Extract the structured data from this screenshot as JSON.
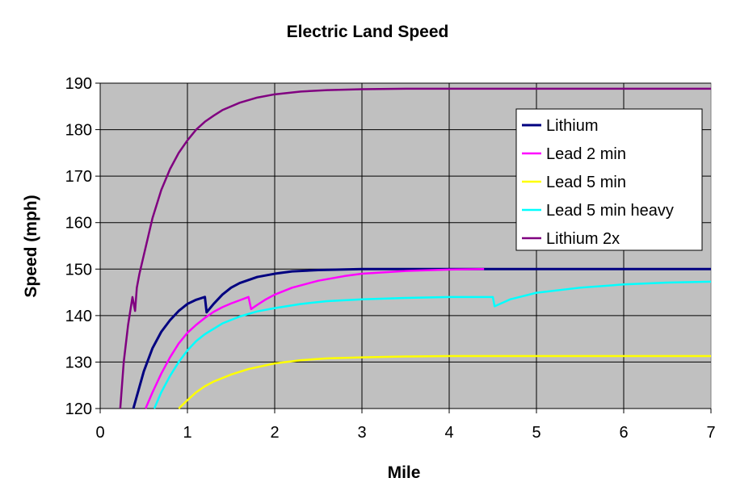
{
  "chart_data": {
    "type": "line",
    "title": "Electric Land Speed",
    "xlabel": "Mile",
    "ylabel": "Speed (mph)",
    "xlim": [
      0,
      7
    ],
    "ylim": [
      120,
      190
    ],
    "x_ticks": [
      0,
      1,
      2,
      3,
      4,
      5,
      6,
      7
    ],
    "y_ticks": [
      120,
      130,
      140,
      150,
      160,
      170,
      180,
      190
    ],
    "grid": true,
    "plot_background": "#c0c0c0",
    "legend_position": "top-right",
    "series": [
      {
        "name": "Lithium",
        "color": "#000080",
        "x": [
          0.38,
          0.5,
          0.6,
          0.7,
          0.8,
          0.9,
          1.0,
          1.1,
          1.2,
          1.22,
          1.3,
          1.4,
          1.5,
          1.6,
          1.8,
          2.0,
          2.2,
          2.5,
          3.0,
          3.5,
          4.0,
          5.0,
          6.0,
          7.0
        ],
        "y": [
          120,
          128,
          133,
          136.5,
          139,
          141,
          142.5,
          143.4,
          144,
          140.7,
          142.5,
          144.5,
          146,
          147,
          148.3,
          149,
          149.5,
          149.8,
          150,
          150,
          150,
          150,
          150,
          150
        ]
      },
      {
        "name": "Lead 2 min",
        "color": "#ff00ff",
        "x": [
          0.52,
          0.6,
          0.7,
          0.8,
          0.9,
          1.0,
          1.1,
          1.2,
          1.3,
          1.4,
          1.5,
          1.6,
          1.7,
          1.73,
          1.8,
          1.9,
          2.0,
          2.2,
          2.5,
          2.8,
          3.0,
          3.5,
          4.0,
          4.4
        ],
        "y": [
          120,
          123.5,
          127.5,
          131,
          134,
          136.3,
          138,
          139.5,
          140.8,
          141.8,
          142.6,
          143.3,
          144,
          141.4,
          142.3,
          143.5,
          144.5,
          146,
          147.5,
          148.5,
          149,
          149.6,
          149.9,
          150
        ]
      },
      {
        "name": "Lead 5 min",
        "color": "#ffff00",
        "x": [
          0.9,
          1.0,
          1.1,
          1.2,
          1.3,
          1.5,
          1.7,
          2.0,
          2.3,
          2.6,
          3.0,
          3.5,
          4.0,
          5.0,
          6.0,
          7.0
        ],
        "y": [
          120,
          121.8,
          123.5,
          124.8,
          125.8,
          127.3,
          128.5,
          129.7,
          130.4,
          130.8,
          131,
          131.2,
          131.3,
          131.3,
          131.3,
          131.3
        ]
      },
      {
        "name": "Lead 5 min heavy",
        "color": "#00ffff",
        "x": [
          0.62,
          0.7,
          0.8,
          0.9,
          1.0,
          1.1,
          1.2,
          1.4,
          1.6,
          1.8,
          2.0,
          2.3,
          2.6,
          3.0,
          3.5,
          4.0,
          4.5,
          4.52,
          4.7,
          5.0,
          5.5,
          6.0,
          6.5,
          7.0
        ],
        "y": [
          120,
          123.5,
          127,
          130,
          132.5,
          134.5,
          136,
          138.3,
          139.8,
          140.9,
          141.6,
          142.5,
          143.1,
          143.5,
          143.8,
          144,
          144,
          142,
          143.5,
          144.9,
          146,
          146.7,
          147.1,
          147.3
        ]
      },
      {
        "name": "Lithium 2x",
        "color": "#800080",
        "x": [
          0.23,
          0.27,
          0.32,
          0.37,
          0.4,
          0.42,
          0.45,
          0.5,
          0.55,
          0.6,
          0.7,
          0.8,
          0.9,
          1.0,
          1.1,
          1.2,
          1.3,
          1.4,
          1.6,
          1.8,
          2.0,
          2.3,
          2.6,
          3.0,
          3.5,
          4.0,
          5.0,
          6.0,
          7.0
        ],
        "y": [
          120,
          130,
          138,
          144,
          141,
          146,
          149,
          153,
          157,
          161,
          167,
          171.5,
          175,
          177.7,
          180,
          181.7,
          183,
          184.2,
          185.8,
          186.9,
          187.6,
          188.2,
          188.5,
          188.7,
          188.8,
          188.8,
          188.8,
          188.8,
          188.8
        ]
      }
    ]
  }
}
